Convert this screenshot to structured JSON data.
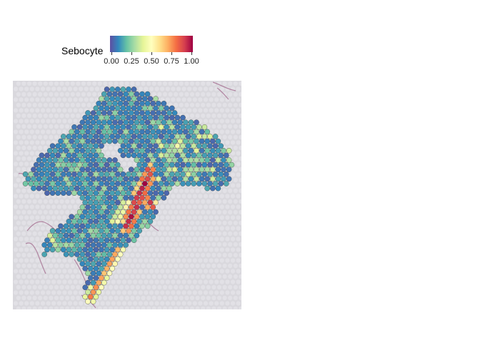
{
  "legend": {
    "title": "Sebocyte",
    "ticks": [
      "0.00",
      "0.25",
      "0.50",
      "0.75",
      "1.00"
    ],
    "colors": [
      "#5e4fa2",
      "#3288bd",
      "#66c2a5",
      "#abdda4",
      "#e6f598",
      "#ffffbf",
      "#fee08b",
      "#fdae61",
      "#f46d43",
      "#d53e4f",
      "#9e0142"
    ]
  },
  "image": {
    "background_color": "#d9d8dd",
    "tissue_stain_color": "#8a3a6a"
  }
}
